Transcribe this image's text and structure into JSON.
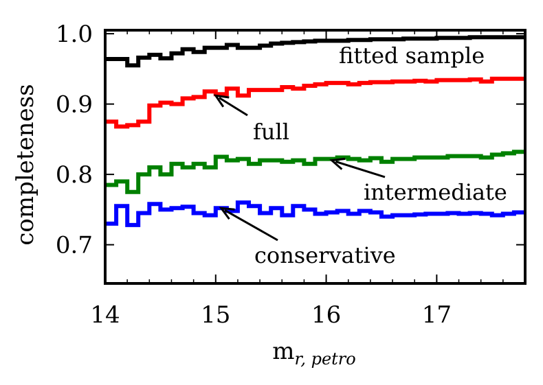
{
  "chart_data": {
    "type": "line",
    "xlabel": "m",
    "xlabel_sub": "r, petro",
    "ylabel": "completeness",
    "xlim": [
      14.0,
      17.8
    ],
    "ylim": [
      0.645,
      1.005
    ],
    "xticks": [
      14,
      15,
      16,
      17
    ],
    "xtick_labels": [
      "14",
      "15",
      "16",
      "17"
    ],
    "yticks": [
      0.7,
      0.8,
      0.9,
      1.0
    ],
    "ytick_labels": [
      "0.7",
      "0.8",
      "0.9",
      "1.0"
    ],
    "grid": false,
    "step": true,
    "x": [
      14.0,
      14.1,
      14.2,
      14.3,
      14.4,
      14.5,
      14.6,
      14.7,
      14.8,
      14.9,
      15.0,
      15.1,
      15.2,
      15.3,
      15.4,
      15.5,
      15.6,
      15.7,
      15.8,
      15.9,
      16.0,
      16.1,
      16.2,
      16.3,
      16.4,
      16.5,
      16.6,
      16.7,
      16.8,
      16.9,
      17.0,
      17.1,
      17.2,
      17.3,
      17.4,
      17.5,
      17.6,
      17.7,
      17.8
    ],
    "series": [
      {
        "name": "fitted sample",
        "color": "#000000",
        "values": [
          0.964,
          0.964,
          0.955,
          0.966,
          0.97,
          0.965,
          0.972,
          0.978,
          0.974,
          0.98,
          0.98,
          0.984,
          0.98,
          0.98,
          0.983,
          0.986,
          0.987,
          0.988,
          0.989,
          0.99,
          0.99,
          0.99,
          0.991,
          0.991,
          0.992,
          0.992,
          0.992,
          0.993,
          0.993,
          0.993,
          0.994,
          0.994,
          0.994,
          0.995,
          0.995,
          0.995,
          0.995,
          0.995,
          0.995
        ]
      },
      {
        "name": "full",
        "color": "#ff0000",
        "values": [
          0.875,
          0.868,
          0.87,
          0.875,
          0.898,
          0.902,
          0.9,
          0.908,
          0.91,
          0.918,
          0.914,
          0.922,
          0.912,
          0.92,
          0.92,
          0.92,
          0.924,
          0.922,
          0.926,
          0.928,
          0.93,
          0.93,
          0.928,
          0.93,
          0.931,
          0.931,
          0.932,
          0.932,
          0.933,
          0.932,
          0.934,
          0.934,
          0.934,
          0.935,
          0.932,
          0.936,
          0.936,
          0.936,
          0.936
        ]
      },
      {
        "name": "intermediate",
        "color": "#008000",
        "values": [
          0.785,
          0.79,
          0.775,
          0.8,
          0.81,
          0.8,
          0.815,
          0.81,
          0.815,
          0.81,
          0.825,
          0.82,
          0.822,
          0.815,
          0.82,
          0.82,
          0.818,
          0.82,
          0.815,
          0.822,
          0.822,
          0.824,
          0.822,
          0.82,
          0.823,
          0.818,
          0.822,
          0.822,
          0.824,
          0.824,
          0.824,
          0.826,
          0.826,
          0.826,
          0.824,
          0.828,
          0.83,
          0.832,
          0.832
        ]
      },
      {
        "name": "conservative",
        "color": "#0000ff",
        "values": [
          0.73,
          0.755,
          0.728,
          0.745,
          0.758,
          0.75,
          0.752,
          0.754,
          0.745,
          0.742,
          0.752,
          0.748,
          0.76,
          0.755,
          0.745,
          0.752,
          0.742,
          0.755,
          0.75,
          0.744,
          0.746,
          0.748,
          0.744,
          0.748,
          0.746,
          0.74,
          0.742,
          0.742,
          0.743,
          0.744,
          0.744,
          0.745,
          0.744,
          0.745,
          0.744,
          0.742,
          0.744,
          0.746,
          0.746
        ]
      }
    ],
    "annotations": [
      {
        "text": "fitted sample",
        "arrow_to": null
      },
      {
        "text": "full",
        "arrow_to": [
          15.0,
          0.912
        ]
      },
      {
        "text": "intermediate",
        "arrow_to": [
          16.05,
          0.82
        ]
      },
      {
        "text": "conservative",
        "arrow_to": [
          15.05,
          0.752
        ]
      }
    ]
  }
}
